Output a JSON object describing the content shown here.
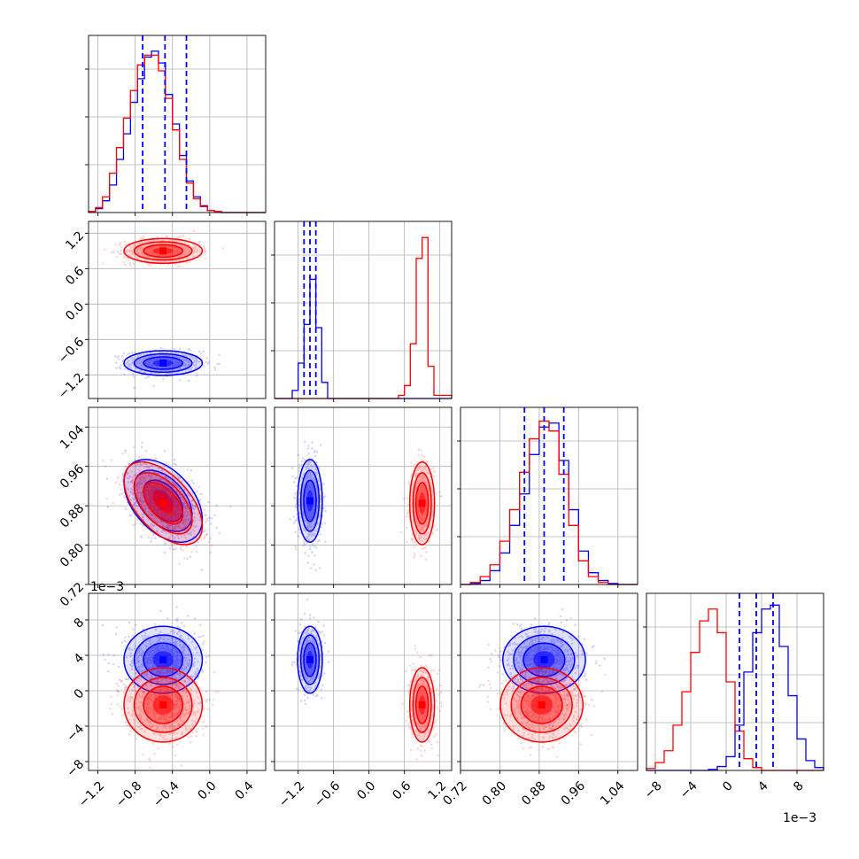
{
  "colors": {
    "series_a": "#0000ff",
    "series_b": "#ff0000",
    "grid": "#b0b0b0",
    "frame": "#000000",
    "background": "#ffffff"
  },
  "chart_data": {
    "type": "corner",
    "grid": true,
    "parameters": [
      {
        "index": 0,
        "range": [
          -1.3,
          0.6
        ],
        "ticks": [
          -1.2,
          -0.8,
          -0.4,
          0.0,
          0.4
        ],
        "tick_labels": [
          "−1.2",
          "−0.8",
          "−0.4",
          "0.0",
          "0.4"
        ]
      },
      {
        "index": 1,
        "range": [
          -1.6,
          1.4
        ],
        "ticks": [
          -1.2,
          -0.6,
          0.0,
          0.6,
          1.2
        ],
        "tick_labels": [
          "−1.2",
          "−0.6",
          "0.0",
          "0.6",
          "1.2"
        ]
      },
      {
        "index": 2,
        "range": [
          0.72,
          1.08
        ],
        "ticks": [
          0.72,
          0.8,
          0.88,
          0.96,
          1.04
        ],
        "tick_labels": [
          "0.72",
          "0.80",
          "0.88",
          "0.96",
          "1.04"
        ],
        "x_tick_labels": [
          "0.72",
          "0.80",
          "0.88",
          "0.96",
          "1.04"
        ]
      },
      {
        "index": 3,
        "range": [
          -9,
          11
        ],
        "ticks": [
          -8,
          -4,
          0,
          4,
          8
        ],
        "tick_labels": [
          "−8",
          "−4",
          "0",
          "4",
          "8"
        ],
        "offset_label": "1e−3"
      }
    ],
    "offset_labels": [
      "1e−3",
      "1e−3"
    ],
    "series": [
      {
        "color": "#0000ff",
        "means": [
          -0.5,
          -1.0,
          0.89,
          3.5
        ],
        "sds": [
          0.2,
          0.1,
          0.04,
          1.8
        ],
        "correlations": [
          [
            0,
            2,
            -0.45
          ]
        ],
        "quantile_lines": true
      },
      {
        "color": "#ff0000",
        "means": [
          -0.5,
          0.9,
          0.885,
          -1.6
        ],
        "sds": [
          0.2,
          0.1,
          0.04,
          2.0
        ],
        "correlations": [
          [
            0,
            2,
            -0.55
          ]
        ],
        "quantile_lines": false
      }
    ],
    "quantiles": {
      "p0": [
        -0.72,
        -0.48,
        -0.25
      ],
      "p1": [
        -1.1,
        -1.0,
        -0.9
      ],
      "p2": [
        0.85,
        0.89,
        0.93
      ],
      "p3": [
        1.5,
        3.4,
        5.3
      ]
    },
    "histograms": {
      "p0": {
        "edges": [
          -1.3,
          -1.225,
          -1.15,
          -1.075,
          -1.0,
          -0.925,
          -0.85,
          -0.775,
          -0.7,
          -0.625,
          -0.55,
          -0.475,
          -0.4,
          -0.325,
          -0.25,
          -0.175,
          -0.1,
          -0.025,
          0.05,
          0.125,
          0.2,
          0.6
        ],
        "blue": [
          0.005,
          0.02,
          0.06,
          0.14,
          0.27,
          0.4,
          0.56,
          0.68,
          0.79,
          0.82,
          0.76,
          0.6,
          0.45,
          0.29,
          0.16,
          0.08,
          0.035,
          0.01,
          0.005,
          0.0,
          0.0
        ],
        "red": [
          0.005,
          0.025,
          0.08,
          0.2,
          0.33,
          0.48,
          0.62,
          0.75,
          0.8,
          0.8,
          0.72,
          0.58,
          0.42,
          0.27,
          0.15,
          0.07,
          0.03,
          0.01,
          0.005,
          0.0,
          0.0
        ],
        "ymax": 0.9
      },
      "p1": {
        "blue_edges": [
          -1.6,
          -1.3,
          -1.2,
          -1.1,
          -1.0,
          -0.9,
          -0.8,
          -0.7,
          1.4
        ],
        "blue": [
          0.0,
          0.05,
          0.22,
          0.46,
          0.74,
          0.44,
          0.1,
          0.0
        ],
        "red_edges": [
          -1.6,
          0.5,
          0.6,
          0.7,
          0.8,
          0.9,
          1.0,
          1.1,
          1.4
        ],
        "red": [
          0.0,
          0.02,
          0.08,
          0.34,
          0.87,
          1.0,
          0.2,
          0.02
        ],
        "ymax": 1.1
      },
      "p2": {
        "edges": [
          0.72,
          0.74,
          0.76,
          0.78,
          0.8,
          0.82,
          0.84,
          0.86,
          0.88,
          0.9,
          0.92,
          0.94,
          0.96,
          0.98,
          1.0,
          1.02,
          1.04,
          1.06,
          1.08
        ],
        "blue": [
          0.0,
          0.005,
          0.02,
          0.07,
          0.16,
          0.3,
          0.46,
          0.66,
          0.8,
          0.82,
          0.63,
          0.38,
          0.17,
          0.06,
          0.02,
          0.005,
          0.0,
          0.0
        ],
        "red": [
          0.0,
          0.01,
          0.04,
          0.1,
          0.22,
          0.38,
          0.57,
          0.74,
          0.83,
          0.78,
          0.56,
          0.3,
          0.12,
          0.04,
          0.01,
          0.0,
          0.0,
          0.0
        ],
        "ymax": 0.9
      },
      "p3": {
        "edges": [
          -9,
          -8,
          -7,
          -6,
          -5,
          -4,
          -3,
          -2,
          -1,
          0,
          1,
          2,
          3,
          4,
          5,
          6,
          7,
          8,
          9,
          10,
          11
        ],
        "blue": [
          0.0,
          0.0,
          0.0,
          0.0,
          0.0,
          0.0,
          0.0,
          0.005,
          0.02,
          0.07,
          0.23,
          0.5,
          0.7,
          0.82,
          0.84,
          0.63,
          0.38,
          0.16,
          0.05,
          0.015
        ],
        "red": [
          0.01,
          0.04,
          0.1,
          0.23,
          0.4,
          0.6,
          0.76,
          0.82,
          0.7,
          0.45,
          0.2,
          0.06,
          0.015,
          0.0,
          0.0,
          0.0,
          0.0,
          0.0,
          0.0,
          0.0
        ],
        "ymax": 0.9
      }
    }
  }
}
